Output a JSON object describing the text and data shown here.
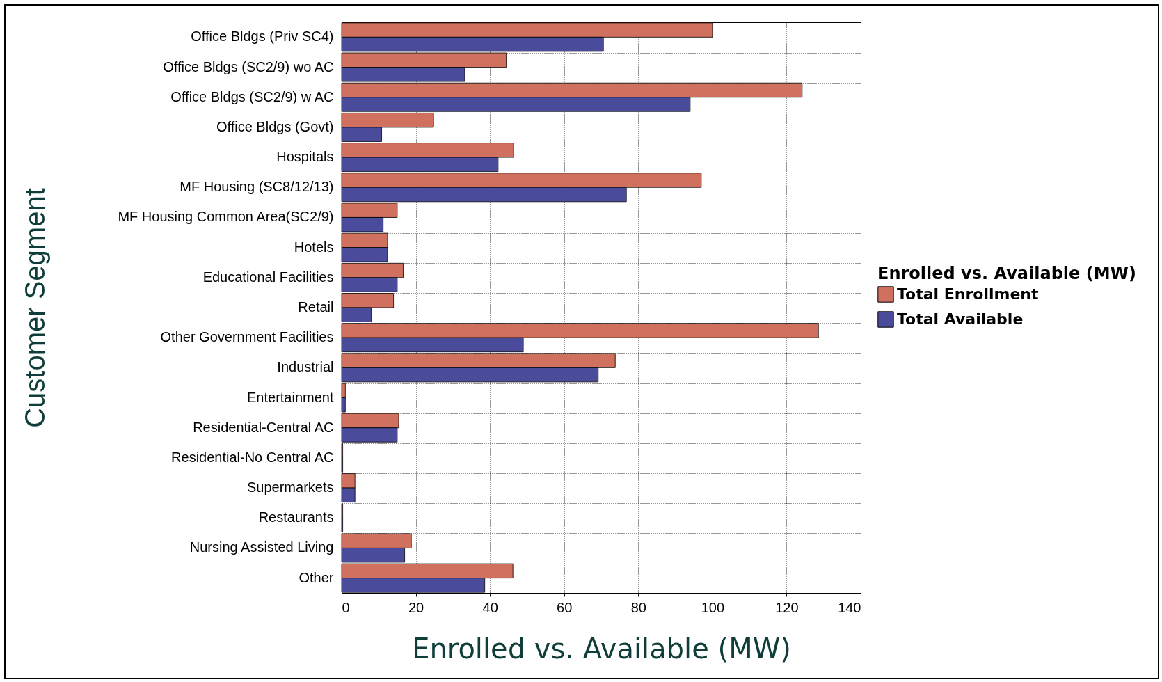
{
  "chart_data": {
    "type": "bar",
    "orientation": "horizontal",
    "xlabel": "Enrolled vs. Available (MW)",
    "ylabel": "Customer Segment",
    "legend_title": "Enrolled vs. Available (MW)",
    "categories": [
      "Office Bldgs (Priv SC4)",
      "Office Bldgs (SC2/9) wo AC",
      "Office Bldgs (SC2/9) w AC",
      "Office Bldgs (Govt)",
      "Hospitals",
      "MF Housing (SC8/12/13)",
      "MF Housing Common Area(SC2/9)",
      "Hotels",
      "Educational Facilities",
      "Retail",
      "Other Government Facilities",
      "Industrial",
      "Entertainment",
      "Residential-Central AC",
      "Residential-No Central AC",
      "Supermarkets",
      "Restaurants",
      "Nursing Assisted Living",
      "Other"
    ],
    "series": [
      {
        "name": "Total Enrollment",
        "color": "#d0705f",
        "values": [
          100,
          44.4,
          124.2,
          24.8,
          46.4,
          97,
          15,
          12.4,
          16.6,
          14,
          128.6,
          73.8,
          1,
          15.4,
          0.3,
          3.6,
          0.3,
          18.8,
          46.2
        ]
      },
      {
        "name": "Total Available",
        "color": "#4b4b9b",
        "values": [
          70.6,
          33.2,
          94,
          10.8,
          42.2,
          76.8,
          11.2,
          12.4,
          15,
          8,
          49,
          69.2,
          1,
          15,
          0.3,
          3.6,
          0.3,
          17,
          38.6
        ]
      }
    ],
    "xlim": [
      0,
      140
    ],
    "xticks": [
      0,
      20,
      40,
      60,
      80,
      100,
      120,
      140
    ],
    "grid": true,
    "legend": "right"
  }
}
